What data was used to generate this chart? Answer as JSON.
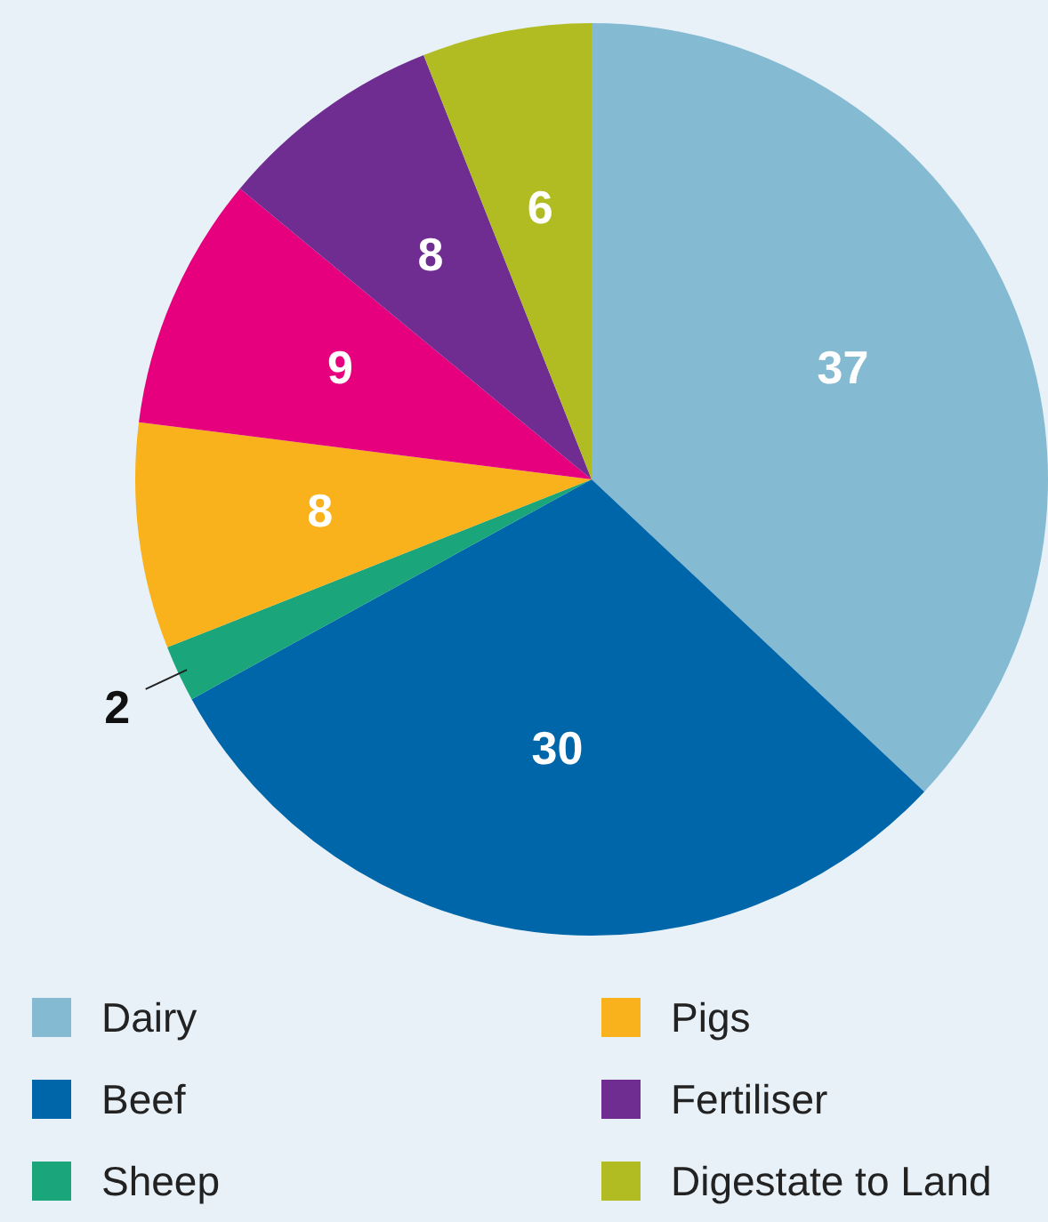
{
  "chart_data": {
    "type": "pie",
    "categories": [
      "Dairy",
      "Beef",
      "Sheep",
      "Pigs",
      null,
      "Fertiliser",
      "Digestate to Land"
    ],
    "values": [
      37,
      30,
      2,
      8,
      9,
      8,
      6
    ],
    "colors": [
      "#85bad3",
      "#0066aa",
      "#1aa57a",
      "#f9b21b",
      "#e6007e",
      "#6f2c91",
      "#b0bc22"
    ],
    "data_labels": true,
    "legend": "bottom"
  }
}
